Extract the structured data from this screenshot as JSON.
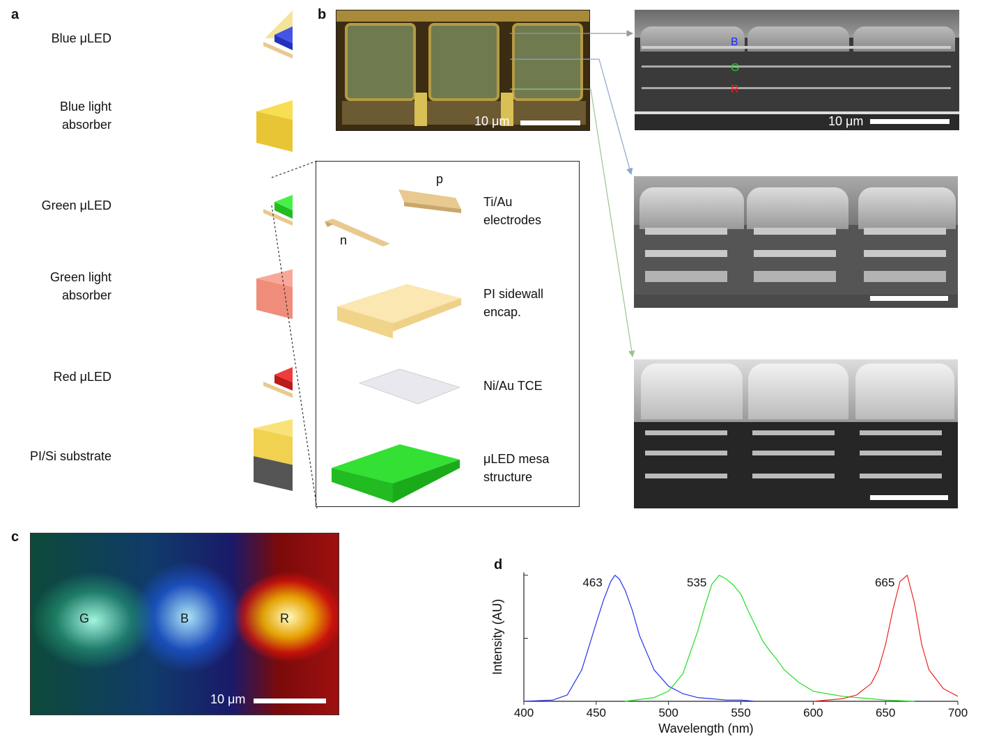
{
  "panels": {
    "a": "a",
    "b": "b",
    "c": "c",
    "d": "d"
  },
  "layers": [
    {
      "label": "Blue μLED"
    },
    {
      "label": "Blue light\nabsorber"
    },
    {
      "label": "Green μLED"
    },
    {
      "label": "Green light\nabsorber"
    },
    {
      "label": "Red μLED"
    },
    {
      "label": "PI/Si substrate"
    }
  ],
  "inset": {
    "p_label": "p",
    "n_label": "n",
    "electrodes": "Ti/Au\nelectrodes",
    "sidewall": "PI sidewall\nencap.",
    "tce": "Ni/Au TCE",
    "mesa": "μLED mesa\nstructure"
  },
  "scale": {
    "optical": "10 μm",
    "sem": "10 μm",
    "emission": "10 μm"
  },
  "sem_labels": {
    "b": "B",
    "g": "G",
    "r": "R"
  },
  "emission_labels": {
    "g": "G",
    "b": "B",
    "r": "R"
  },
  "colors": {
    "blue": "#2233ee",
    "green": "#22dd22",
    "red": "#ee2222",
    "blue_label": "#1a2cff",
    "green_label": "#22cc22",
    "red_label": "#ff1a1a"
  },
  "chart_data": {
    "type": "line",
    "title": "",
    "xlabel": "Wavelength (nm)",
    "ylabel": "Intensity (AU)",
    "xlim": [
      400,
      700
    ],
    "xticks": [
      400,
      450,
      500,
      550,
      600,
      650,
      700
    ],
    "series": [
      {
        "peak": 463,
        "color": "#2233ee",
        "peak_label": "463",
        "x": [
          400,
          420,
          430,
          440,
          450,
          455,
          460,
          463,
          466,
          470,
          475,
          480,
          490,
          500,
          510,
          520,
          530,
          540,
          550,
          560
        ],
        "y": [
          0,
          0.01,
          0.05,
          0.25,
          0.62,
          0.8,
          0.95,
          1.0,
          0.97,
          0.88,
          0.72,
          0.52,
          0.25,
          0.12,
          0.06,
          0.03,
          0.02,
          0.01,
          0.01,
          0
        ]
      },
      {
        "peak": 535,
        "color": "#22dd22",
        "peak_label": "535",
        "x": [
          470,
          490,
          500,
          510,
          520,
          525,
          530,
          535,
          540,
          545,
          550,
          555,
          560,
          565,
          570,
          575,
          580,
          590,
          600,
          620,
          640,
          650,
          670
        ],
        "y": [
          0,
          0.03,
          0.08,
          0.22,
          0.55,
          0.75,
          0.93,
          1.0,
          0.97,
          0.92,
          0.85,
          0.72,
          0.6,
          0.48,
          0.4,
          0.33,
          0.25,
          0.15,
          0.08,
          0.04,
          0.02,
          0.01,
          0
        ]
      },
      {
        "peak": 665,
        "color": "#ee2222",
        "peak_label": "665",
        "x": [
          600,
          620,
          630,
          640,
          645,
          650,
          655,
          660,
          665,
          670,
          675,
          680,
          690,
          700
        ],
        "y": [
          0,
          0.02,
          0.05,
          0.14,
          0.25,
          0.45,
          0.72,
          0.95,
          1.0,
          0.78,
          0.45,
          0.25,
          0.1,
          0.04
        ]
      }
    ]
  }
}
